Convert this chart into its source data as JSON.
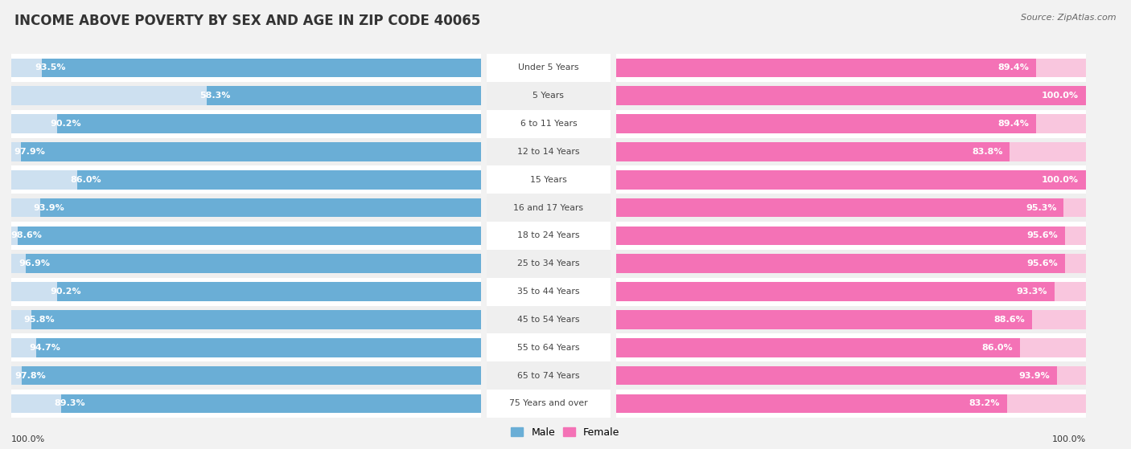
{
  "title": "INCOME ABOVE POVERTY BY SEX AND AGE IN ZIP CODE 40065",
  "source": "Source: ZipAtlas.com",
  "categories": [
    "Under 5 Years",
    "5 Years",
    "6 to 11 Years",
    "12 to 14 Years",
    "15 Years",
    "16 and 17 Years",
    "18 to 24 Years",
    "25 to 34 Years",
    "35 to 44 Years",
    "45 to 54 Years",
    "55 to 64 Years",
    "65 to 74 Years",
    "75 Years and over"
  ],
  "male_values": [
    93.5,
    58.3,
    90.2,
    97.9,
    86.0,
    93.9,
    98.6,
    96.9,
    90.2,
    95.8,
    94.7,
    97.8,
    89.3
  ],
  "female_values": [
    89.4,
    100.0,
    89.4,
    83.8,
    100.0,
    95.3,
    95.6,
    95.6,
    93.3,
    88.6,
    86.0,
    93.9,
    83.2
  ],
  "male_color": "#6aaed6",
  "male_color_light": "#cde0f0",
  "female_color": "#f472b6",
  "female_color_light": "#f9c6de",
  "bg_color": "#f2f2f2",
  "row_bg_even": "#ffffff",
  "row_bg_odd": "#efefef",
  "title_fontsize": 12,
  "label_fontsize": 8.0,
  "source_fontsize": 8,
  "legend_fontsize": 9,
  "x_max": 100.0
}
